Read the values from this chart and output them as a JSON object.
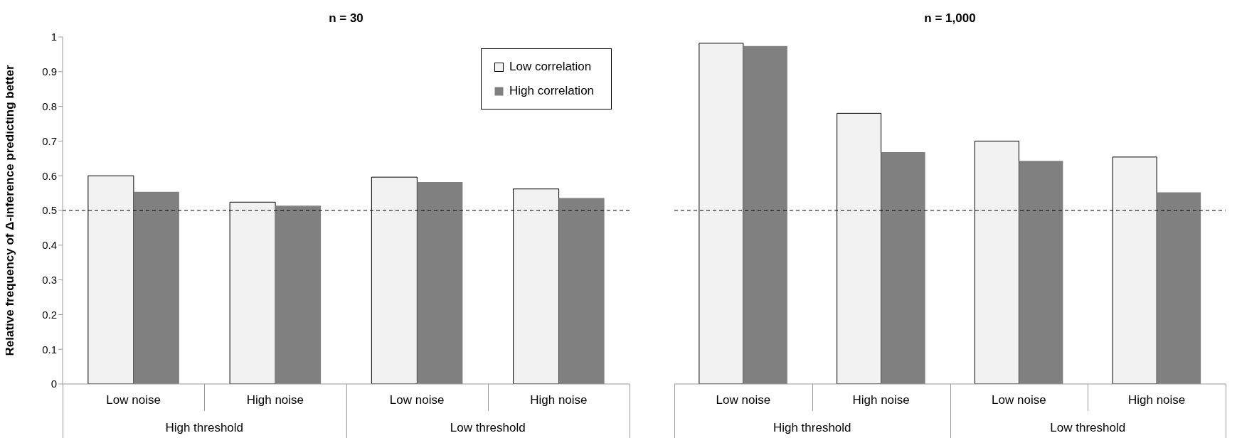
{
  "chart_data": [
    {
      "type": "bar",
      "title": "n = 30",
      "ylabel": "Relative frequency of Δ-inference predicting better",
      "categories": [
        "Low noise",
        "High noise",
        "Low noise",
        "High noise"
      ],
      "annotations": [
        "High threshold",
        "Low threshold"
      ],
      "series": [
        {
          "name": "Low correlation",
          "color": "#f2f2f2",
          "values": [
            0.6,
            0.524,
            0.596,
            0.562
          ]
        },
        {
          "name": "High correlation",
          "color": "#808080",
          "values": [
            0.554,
            0.514,
            0.582,
            0.536
          ]
        }
      ],
      "ylim": [
        0,
        1
      ],
      "yticks": [
        0,
        0.1,
        0.2,
        0.3,
        0.4,
        0.5,
        0.6,
        0.7,
        0.8,
        0.9,
        1
      ],
      "grid": false,
      "legend": "top right",
      "ref_lines": [
        {
          "axis": "y",
          "value": 0.5,
          "color": "#000000",
          "line_style": "dashed"
        }
      ]
    },
    {
      "type": "bar",
      "title": "n = 1,000",
      "categories": [
        "Low noise",
        "High noise",
        "Low noise",
        "High noise"
      ],
      "annotations": [
        "High threshold",
        "Low threshold"
      ],
      "series": [
        {
          "color": "#f2f2f2",
          "values": [
            0.982,
            0.78,
            0.7,
            0.654
          ]
        },
        {
          "color": "#808080",
          "values": [
            0.974,
            0.668,
            0.643,
            0.552
          ]
        }
      ],
      "ylim": [
        0,
        1
      ],
      "yticks": [
        0,
        0.1,
        0.2,
        0.3,
        0.4,
        0.5,
        0.6,
        0.7,
        0.8,
        0.9,
        1
      ],
      "grid": false,
      "tick_labels": "x",
      "ref_lines": [
        {
          "axis": "y",
          "value": 0.5,
          "color": "#000000",
          "line_style": "dashed"
        }
      ]
    }
  ]
}
